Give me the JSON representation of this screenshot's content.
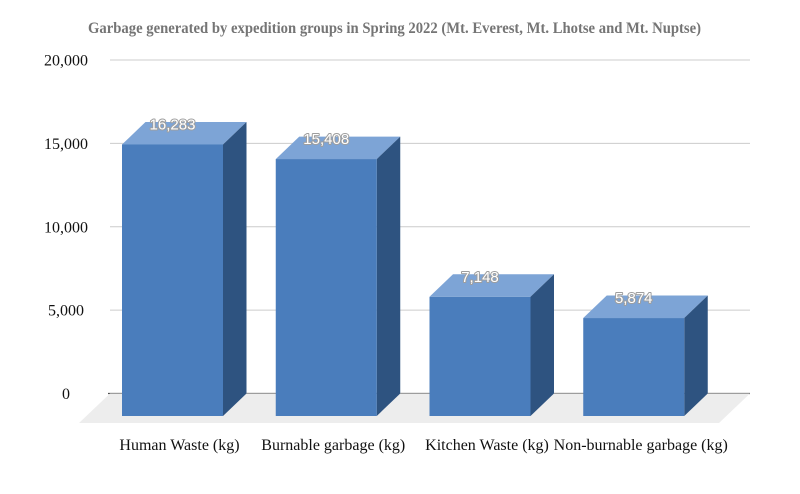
{
  "chart_data": {
    "type": "bar",
    "projection": "3d-column",
    "title": "Garbage generated by expedition groups in Spring 2022 (Mt. Everest, Mt. Lhotse and Mt. Nuptse)",
    "categories": [
      "Human Waste (kg)",
      "Burnable garbage (kg)",
      "Kitchen Waste (kg)",
      "Non-burnable garbage (kg)"
    ],
    "values": [
      16283,
      15408,
      7148,
      5874
    ],
    "value_labels": [
      "16,283",
      "15,408",
      "7,148",
      "5,874"
    ],
    "xlabel": "",
    "ylabel": "",
    "ylim": [
      0,
      20000
    ],
    "grid": true,
    "legend": "none",
    "y_ticks": [
      {
        "value": 20000,
        "label": "20,000"
      },
      {
        "value": 15000,
        "label": "15,000"
      },
      {
        "value": 10000,
        "label": "10,000"
      },
      {
        "value": 5000,
        "label": "5,000"
      },
      {
        "value": 0,
        "label": "0"
      }
    ],
    "colors": {
      "bar_front": "#4a7dbc",
      "bar_top": "#7da4d6",
      "bar_side": "#2e5380",
      "floor": "#ededed",
      "gridline": "#cccccc",
      "axis_line": "#4d4d4d",
      "value_label_fill": "#ffffff",
      "value_label_outline": "#9e9e9e",
      "title_color": "#757575",
      "axis_text": "#111111"
    }
  }
}
